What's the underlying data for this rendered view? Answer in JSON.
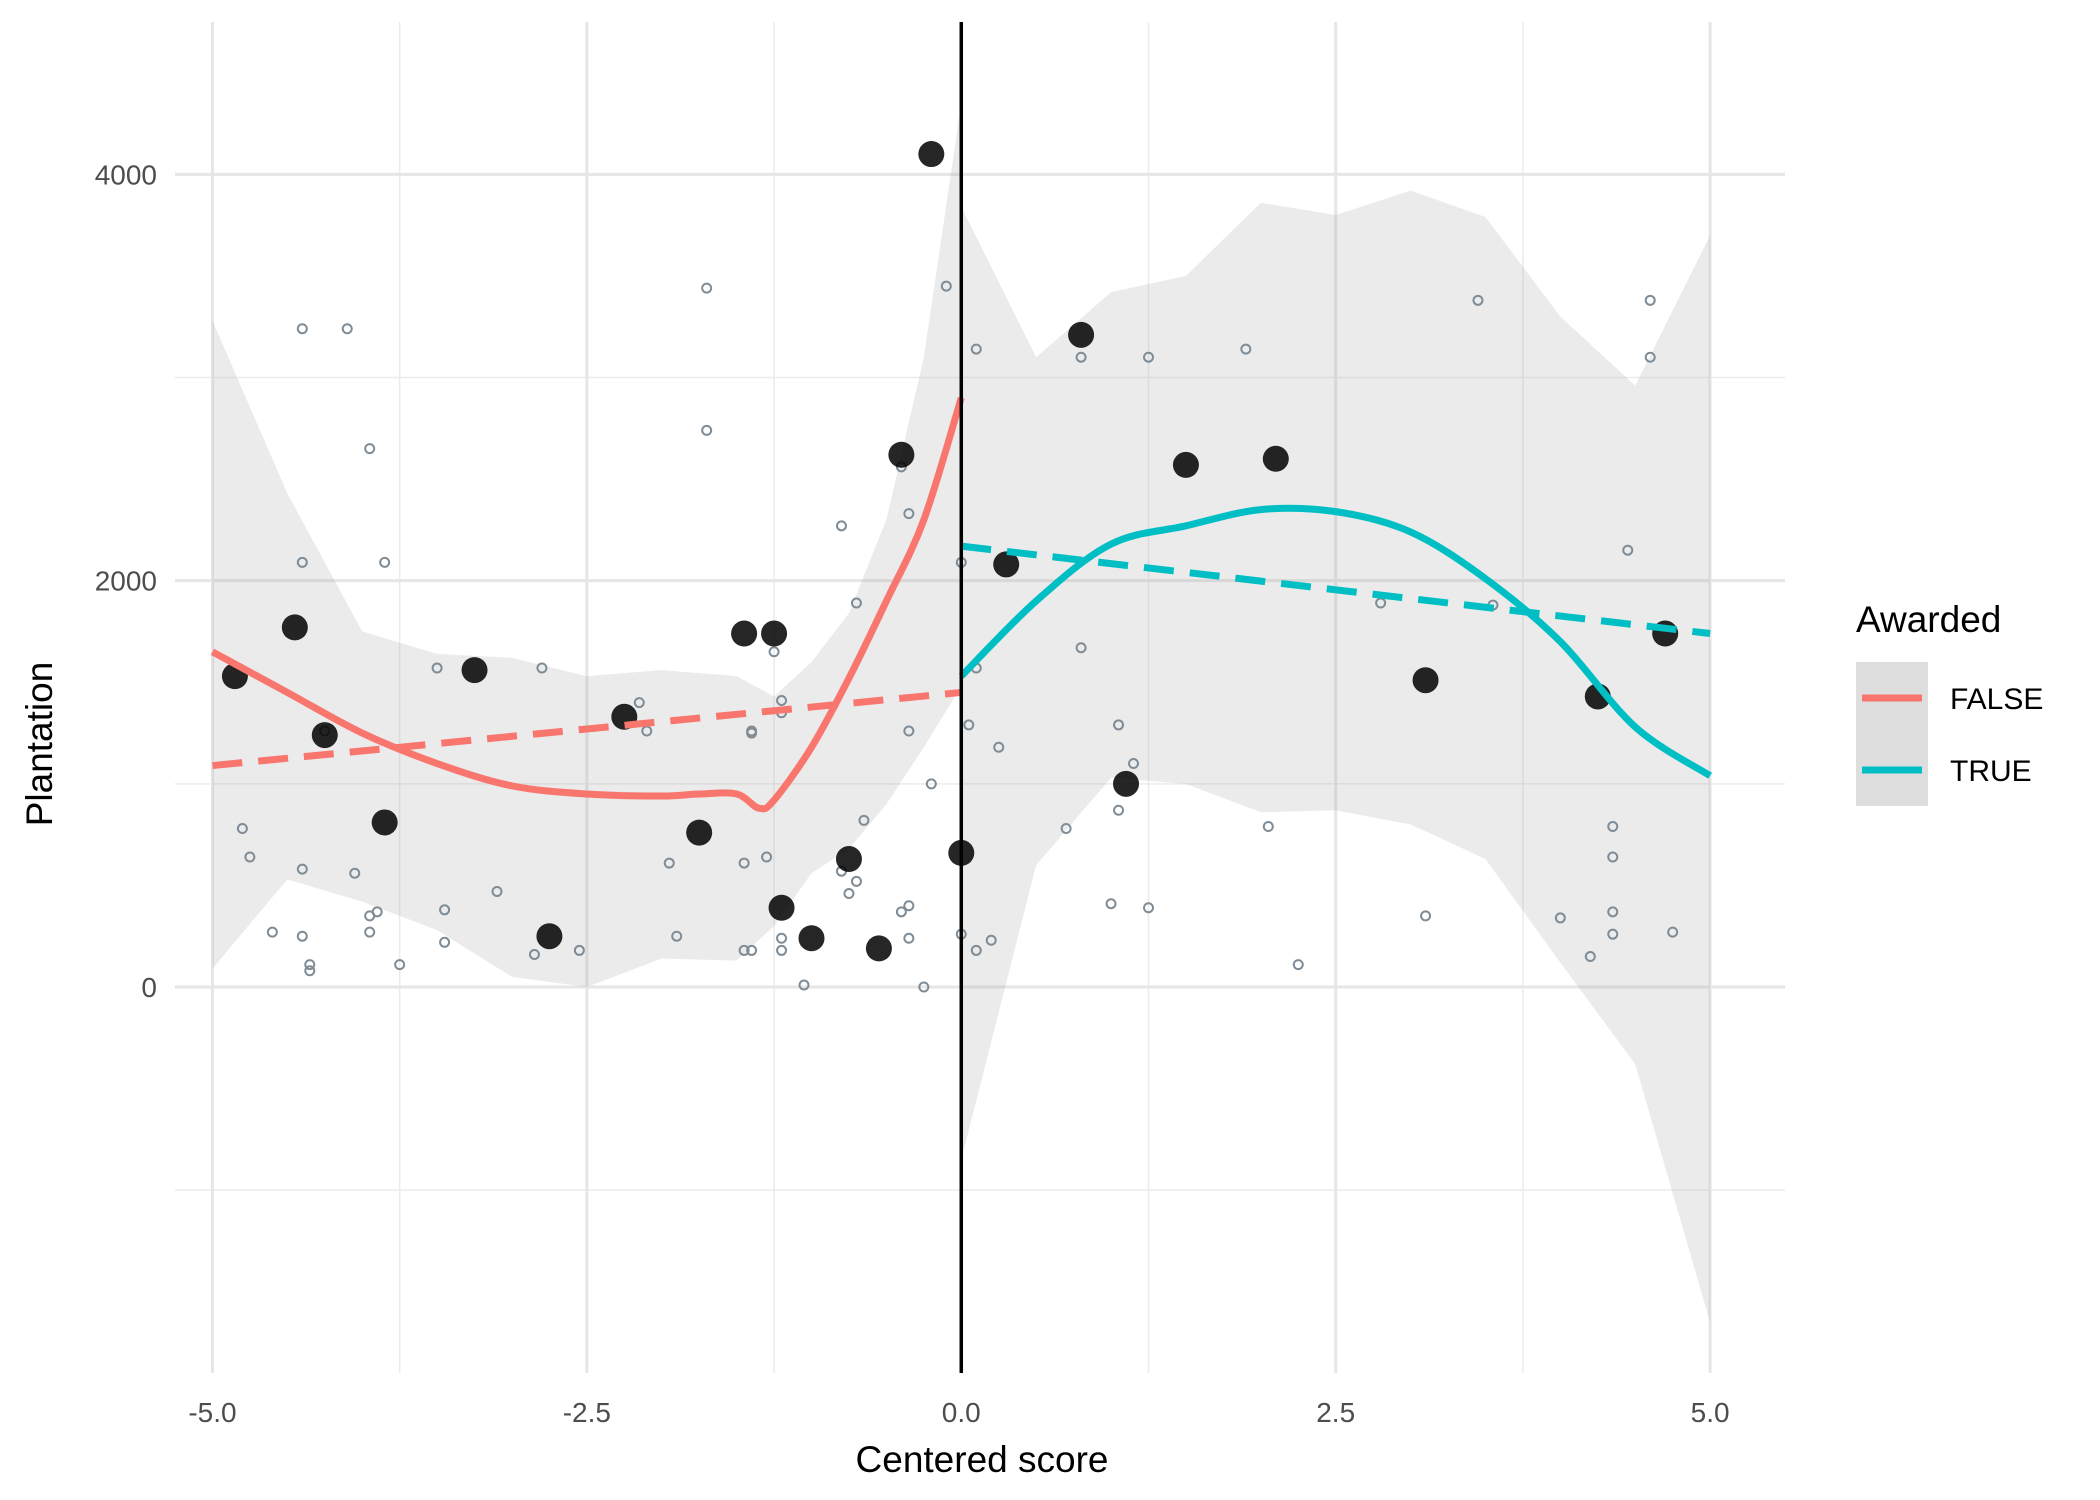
{
  "chart_data": {
    "type": "scatter",
    "xlabel": "Centered score",
    "ylabel": "Plantation",
    "xlim": [
      -5.25,
      5.5
    ],
    "ylim": [
      -1900,
      4750
    ],
    "x_ticks": [
      -5.0,
      -2.5,
      0.0,
      2.5,
      5.0
    ],
    "x_tick_labels": [
      "-5.0",
      "-2.5",
      "0.0",
      "2.5",
      "5.0"
    ],
    "y_ticks": [
      0,
      2000,
      4000
    ],
    "y_tick_labels": [
      "0",
      "2000",
      "4000"
    ],
    "y_minor_ticks": [
      -1000,
      1000,
      3000
    ],
    "x_minor_ticks": [
      -3.75,
      -1.25,
      1.25,
      3.75
    ],
    "grid": true,
    "cutoff_x": 0,
    "legend": {
      "title": "Awarded",
      "position": "right",
      "entries": [
        {
          "label": "FALSE",
          "color": "#F8766D"
        },
        {
          "label": "TRUE",
          "color": "#00BFC4"
        }
      ]
    },
    "small_points": [
      [
        -4.8,
        780
      ],
      [
        -4.75,
        640
      ],
      [
        -4.6,
        270
      ],
      [
        -4.4,
        3240
      ],
      [
        -4.4,
        2090
      ],
      [
        -4.4,
        580
      ],
      [
        -4.4,
        250
      ],
      [
        -4.35,
        110
      ],
      [
        -4.35,
        80
      ],
      [
        -4.25,
        1260
      ],
      [
        -4.1,
        3240
      ],
      [
        -4.05,
        560
      ],
      [
        -3.95,
        2650
      ],
      [
        -3.95,
        350
      ],
      [
        -3.95,
        270
      ],
      [
        -3.9,
        370
      ],
      [
        -3.85,
        2090
      ],
      [
        -3.75,
        110
      ],
      [
        -3.5,
        1570
      ],
      [
        -3.45,
        380
      ],
      [
        -3.45,
        220
      ],
      [
        -3.1,
        470
      ],
      [
        -2.8,
        1570
      ],
      [
        -2.85,
        160
      ],
      [
        -2.55,
        180
      ],
      [
        -2.15,
        1400
      ],
      [
        -2.1,
        1260
      ],
      [
        -1.95,
        610
      ],
      [
        -1.9,
        250
      ],
      [
        -1.7,
        3440
      ],
      [
        -1.7,
        2740
      ],
      [
        -1.45,
        610
      ],
      [
        -1.45,
        180
      ],
      [
        -1.4,
        1260
      ],
      [
        -1.4,
        1250
      ],
      [
        -1.4,
        180
      ],
      [
        -1.3,
        640
      ],
      [
        -1.25,
        1650
      ],
      [
        -1.2,
        1410
      ],
      [
        -1.2,
        1350
      ],
      [
        -1.2,
        240
      ],
      [
        -1.2,
        180
      ],
      [
        -1.05,
        10
      ],
      [
        -0.8,
        2270
      ],
      [
        -0.8,
        570
      ],
      [
        -0.75,
        460
      ],
      [
        -0.7,
        1890
      ],
      [
        -0.7,
        520
      ],
      [
        -0.65,
        820
      ],
      [
        -0.4,
        2560
      ],
      [
        -0.4,
        370
      ],
      [
        -0.35,
        400
      ],
      [
        -0.35,
        240
      ],
      [
        -0.35,
        2330
      ],
      [
        -0.35,
        1260
      ],
      [
        -0.25,
        0
      ],
      [
        -0.2,
        1000
      ],
      [
        -0.1,
        3450
      ],
      [
        0.0,
        2090
      ],
      [
        0.0,
        260
      ],
      [
        0.05,
        1290
      ],
      [
        0.1,
        3140
      ],
      [
        0.1,
        180
      ],
      [
        0.1,
        1570
      ],
      [
        0.2,
        230
      ],
      [
        0.25,
        1180
      ],
      [
        0.7,
        780
      ],
      [
        0.8,
        1670
      ],
      [
        0.8,
        3100
      ],
      [
        1.0,
        410
      ],
      [
        1.05,
        1290
      ],
      [
        1.05,
        870
      ],
      [
        1.15,
        1100
      ],
      [
        1.25,
        3100
      ],
      [
        1.25,
        390
      ],
      [
        1.9,
        3140
      ],
      [
        2.05,
        790
      ],
      [
        2.25,
        110
      ],
      [
        2.8,
        1890
      ],
      [
        3.1,
        350
      ],
      [
        3.45,
        3380
      ],
      [
        3.55,
        1880
      ],
      [
        4.0,
        340
      ],
      [
        4.2,
        150
      ],
      [
        4.35,
        790
      ],
      [
        4.35,
        640
      ],
      [
        4.35,
        370
      ],
      [
        4.35,
        260
      ],
      [
        4.45,
        2150
      ],
      [
        4.6,
        3380
      ],
      [
        4.6,
        3100
      ],
      [
        4.75,
        270
      ]
    ],
    "big_points": [
      [
        -4.85,
        1530
      ],
      [
        -4.45,
        1770
      ],
      [
        -4.25,
        1240
      ],
      [
        -3.85,
        810
      ],
      [
        -3.25,
        1560
      ],
      [
        -2.75,
        250
      ],
      [
        -2.25,
        1330
      ],
      [
        -1.75,
        760
      ],
      [
        -1.45,
        1740
      ],
      [
        -1.25,
        1740
      ],
      [
        -1.2,
        390
      ],
      [
        -1.0,
        240
      ],
      [
        -0.75,
        630
      ],
      [
        -0.55,
        190
      ],
      [
        -0.4,
        2620
      ],
      [
        -0.2,
        4100
      ],
      [
        0.0,
        660
      ],
      [
        0.3,
        2080
      ],
      [
        0.8,
        3210
      ],
      [
        1.1,
        1000
      ],
      [
        1.5,
        2570
      ],
      [
        2.1,
        2600
      ],
      [
        3.1,
        1510
      ],
      [
        4.25,
        1430
      ],
      [
        4.7,
        1740
      ]
    ],
    "series": [
      {
        "group": "FALSE",
        "kind": "loess",
        "color": "#F8766D",
        "x": [
          -5.0,
          -4.5,
          -4.0,
          -3.5,
          -3.0,
          -2.5,
          -2.0,
          -1.75,
          -1.5,
          -1.35,
          -1.25,
          -1.0,
          -0.75,
          -0.5,
          -0.25,
          0.0
        ],
        "y": [
          1650,
          1450,
          1250,
          1100,
          990,
          950,
          940,
          950,
          950,
          880,
          920,
          1180,
          1520,
          1900,
          2300,
          2900
        ]
      },
      {
        "group": "FALSE",
        "kind": "linear",
        "color": "#F8766D",
        "x": [
          -5.0,
          0.0
        ],
        "y": [
          1090,
          1450
        ]
      },
      {
        "group": "TRUE",
        "kind": "loess",
        "color": "#00BFC4",
        "x": [
          0.0,
          0.5,
          1.0,
          1.5,
          2.0,
          2.5,
          3.0,
          3.5,
          4.0,
          4.5,
          5.0
        ],
        "y": [
          1530,
          1900,
          2180,
          2270,
          2350,
          2340,
          2240,
          2010,
          1700,
          1280,
          1040
        ]
      },
      {
        "group": "TRUE",
        "kind": "linear",
        "color": "#00BFC4",
        "x": [
          0.0,
          5.0
        ],
        "y": [
          2170,
          1740
        ]
      }
    ],
    "confidence_bands": [
      {
        "group": "FALSE",
        "x": [
          -5.0,
          -4.5,
          -4.0,
          -3.5,
          -3.0,
          -2.5,
          -2.0,
          -1.5,
          -1.25,
          -1.0,
          -0.75,
          -0.5,
          -0.25,
          0.0
        ],
        "upper": [
          3280,
          2430,
          1750,
          1640,
          1620,
          1530,
          1560,
          1530,
          1430,
          1600,
          1840,
          2300,
          3100,
          4350
        ],
        "lower": [
          90,
          530,
          420,
          280,
          50,
          0,
          140,
          130,
          300,
          560,
          680,
          900,
          1180,
          1480
        ]
      },
      {
        "group": "TRUE",
        "x": [
          0.0,
          0.5,
          1.0,
          1.5,
          2.0,
          2.5,
          3.0,
          3.5,
          4.0,
          4.5,
          5.0
        ],
        "upper": [
          3840,
          3100,
          3420,
          3500,
          3860,
          3800,
          3920,
          3790,
          3300,
          2960,
          3700
        ],
        "lower": [
          -850,
          600,
          1030,
          1000,
          860,
          870,
          800,
          630,
          120,
          -380,
          -1650
        ]
      }
    ]
  }
}
